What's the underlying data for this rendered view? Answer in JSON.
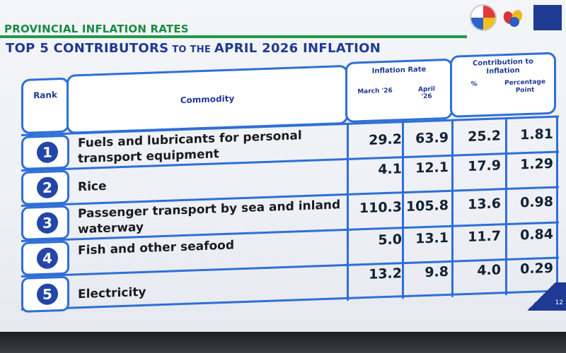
{
  "header": {
    "section_title": "PROVINCIAL INFLATION RATES",
    "main_title_part1": "TOP 5 CONTRIBUTORS",
    "main_title_part2": " TO THE ",
    "main_title_part3": "APRIL 2026 INFLATION"
  },
  "table": {
    "col_rank": "Rank",
    "col_commodity": "Commodity",
    "group_inflation": "Inflation Rate",
    "col_march": "March '26",
    "col_april": "April '26",
    "group_contribution": "Contribution to Inflation",
    "col_percent": "%",
    "col_pp": "Percentage Point",
    "rows": [
      {
        "rank": "1",
        "commodity": "Fuels and lubricants for personal transport equipment",
        "march": "29.2",
        "april": "63.9",
        "pct": "25.2",
        "pp": "1.81"
      },
      {
        "rank": "2",
        "commodity": "Rice",
        "march": "4.1",
        "april": "12.1",
        "pct": "17.9",
        "pp": "1.29"
      },
      {
        "rank": "3",
        "commodity": "Passenger transport by sea and inland waterway",
        "march": "110.3",
        "april": "105.8",
        "pct": "13.6",
        "pp": "0.98"
      },
      {
        "rank": "4",
        "commodity": "Fish and other seafood",
        "march": "5.0",
        "april": "13.1",
        "pct": "11.7",
        "pp": "0.84"
      },
      {
        "rank": "5",
        "commodity": "Electricity",
        "march": "13.2",
        "april": "9.8",
        "pct": "4.0",
        "pp": "0.29"
      }
    ]
  },
  "footer": {
    "page_number": "12"
  },
  "colors": {
    "accent_blue": "#2f6fd6",
    "title_blue": "#1f3a93",
    "title_green": "#1a8a43"
  }
}
